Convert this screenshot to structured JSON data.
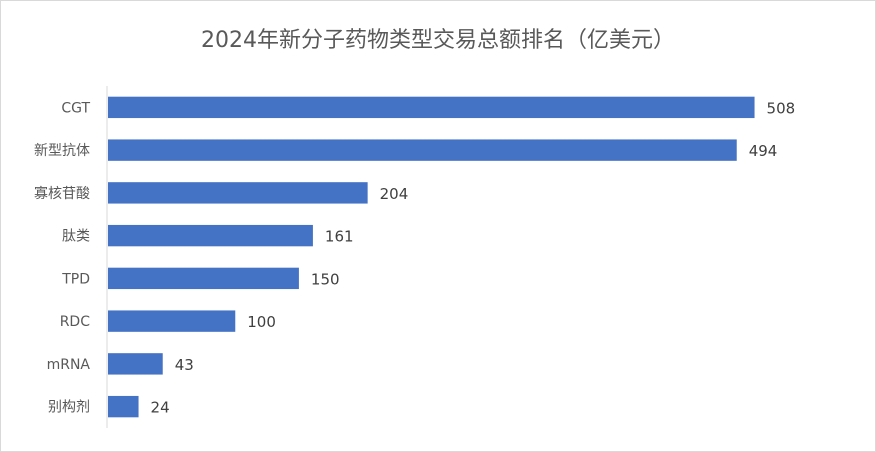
{
  "chart_data": {
    "type": "bar",
    "orientation": "horizontal",
    "title": "2024年新分子药物类型交易总额排名（亿美元）",
    "categories": [
      "CGT",
      "新型抗体",
      "寡核苷酸",
      "肽类",
      "TPD",
      "RDC",
      "mRNA",
      "别构剂"
    ],
    "values": [
      508,
      494,
      204,
      161,
      150,
      100,
      43,
      24
    ],
    "xlabel": "",
    "ylabel": "",
    "xlim": [
      0,
      550
    ],
    "grid": false,
    "legend": "none",
    "data_labels": true,
    "bar_color": "#4472c4"
  }
}
